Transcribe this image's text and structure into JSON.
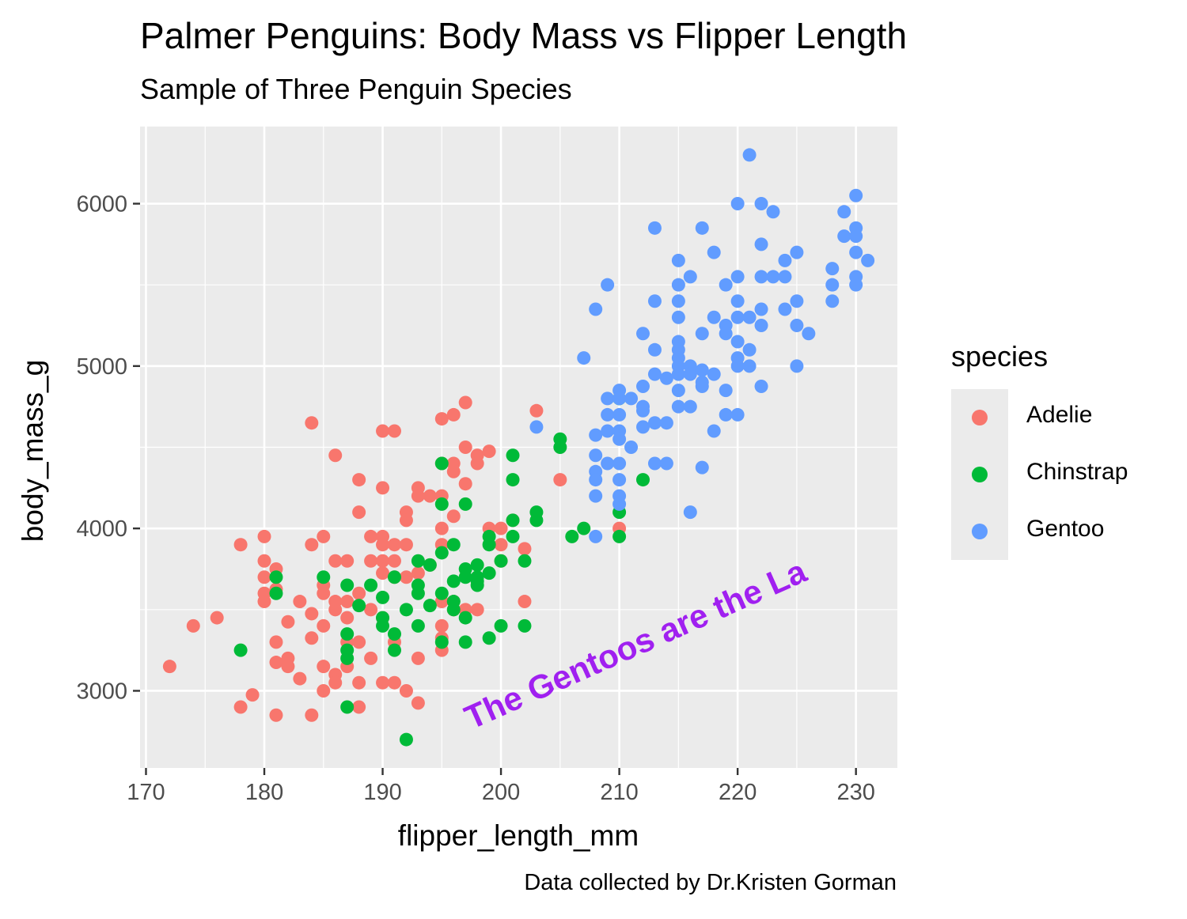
{
  "title": "Palmer Penguins: Body Mass vs Flipper Length",
  "subtitle": "Sample of Three Penguin Species",
  "caption": "Data collected by Dr.Kristen Gorman",
  "chart_data": {
    "type": "scatter",
    "title": "Palmer Penguins: Body Mass vs Flipper Length",
    "subtitle": "Sample of Three Penguin Species",
    "xlabel": "flipper_length_mm",
    "ylabel": "body_mass_g",
    "xlim": [
      169.5,
      233.5
    ],
    "ylim": [
      2525,
      6475
    ],
    "x_ticks": [
      "170",
      "180",
      "190",
      "200",
      "210",
      "220",
      "230"
    ],
    "y_ticks": [
      "3000",
      "4000",
      "5000",
      "6000"
    ],
    "x_tick_values": [
      170,
      180,
      190,
      200,
      210,
      220,
      230
    ],
    "y_tick_values": [
      3000,
      4000,
      5000,
      6000
    ],
    "grid": true,
    "legend_title": "species",
    "legend_position": "right",
    "annotation": {
      "text": "The Gentoos are the La",
      "color": "#a020f0",
      "anchor_data": [
        197.5,
        2760
      ],
      "angle": -24
    },
    "series": [
      {
        "name": "Adelie",
        "color": "#f8766d",
        "points": [
          [
            172,
            3150
          ],
          [
            174,
            3400
          ],
          [
            176,
            3450
          ],
          [
            178,
            3900
          ],
          [
            178,
            2900
          ],
          [
            179,
            2975
          ],
          [
            180,
            3950
          ],
          [
            180,
            3800
          ],
          [
            180,
            3700
          ],
          [
            180,
            3600
          ],
          [
            180,
            3550
          ],
          [
            181,
            3750
          ],
          [
            181,
            3625
          ],
          [
            181,
            3300
          ],
          [
            181,
            3175
          ],
          [
            181,
            2850
          ],
          [
            182,
            3425
          ],
          [
            182,
            3200
          ],
          [
            182,
            3150
          ],
          [
            183,
            3550
          ],
          [
            183,
            3075
          ],
          [
            184,
            4650
          ],
          [
            184,
            3900
          ],
          [
            184,
            3475
          ],
          [
            184,
            3325
          ],
          [
            184,
            2850
          ],
          [
            185,
            3950
          ],
          [
            185,
            3650
          ],
          [
            185,
            3600
          ],
          [
            185,
            3400
          ],
          [
            185,
            3150
          ],
          [
            185,
            3000
          ],
          [
            186,
            4450
          ],
          [
            186,
            3800
          ],
          [
            186,
            3550
          ],
          [
            186,
            3500
          ],
          [
            186,
            3100
          ],
          [
            186,
            3050
          ],
          [
            187,
            3800
          ],
          [
            187,
            3550
          ],
          [
            187,
            3450
          ],
          [
            187,
            3300
          ],
          [
            187,
            3150
          ],
          [
            188,
            4300
          ],
          [
            188,
            4100
          ],
          [
            188,
            3600
          ],
          [
            188,
            3300
          ],
          [
            188,
            3050
          ],
          [
            188,
            2900
          ],
          [
            189,
            3950
          ],
          [
            189,
            3800
          ],
          [
            189,
            3500
          ],
          [
            189,
            3200
          ],
          [
            190,
            4600
          ],
          [
            190,
            4250
          ],
          [
            190,
            3950
          ],
          [
            190,
            3900
          ],
          [
            190,
            3800
          ],
          [
            190,
            3725
          ],
          [
            190,
            3450
          ],
          [
            190,
            3050
          ],
          [
            191,
            4600
          ],
          [
            191,
            3900
          ],
          [
            191,
            3800
          ],
          [
            191,
            3700
          ],
          [
            191,
            3300
          ],
          [
            191,
            3050
          ],
          [
            192,
            4100
          ],
          [
            192,
            4050
          ],
          [
            192,
            3900
          ],
          [
            192,
            3700
          ],
          [
            192,
            3000
          ],
          [
            193,
            4250
          ],
          [
            193,
            4200
          ],
          [
            193,
            3725
          ],
          [
            193,
            3200
          ],
          [
            193,
            2925
          ],
          [
            194,
            4200
          ],
          [
            194,
            3775
          ],
          [
            195,
            4675
          ],
          [
            195,
            4400
          ],
          [
            195,
            4200
          ],
          [
            195,
            4000
          ],
          [
            195,
            3900
          ],
          [
            195,
            3550
          ],
          [
            195,
            3400
          ],
          [
            195,
            3325
          ],
          [
            195,
            3250
          ],
          [
            196,
            4700
          ],
          [
            196,
            4400
          ],
          [
            196,
            4350
          ],
          [
            196,
            4075
          ],
          [
            196,
            3550
          ],
          [
            196,
            3500
          ],
          [
            197,
            4775
          ],
          [
            197,
            4500
          ],
          [
            197,
            4275
          ],
          [
            197,
            3500
          ],
          [
            198,
            4450
          ],
          [
            198,
            4400
          ],
          [
            198,
            3500
          ],
          [
            199,
            4475
          ],
          [
            199,
            4000
          ],
          [
            200,
            4000
          ],
          [
            200,
            3900
          ],
          [
            200,
            3800
          ],
          [
            201,
            4050
          ],
          [
            202,
            3875
          ],
          [
            202,
            3550
          ],
          [
            203,
            4725
          ],
          [
            205,
            4300
          ],
          [
            210,
            4000
          ]
        ]
      },
      {
        "name": "Chinstrap",
        "color": "#00ba38",
        "points": [
          [
            178,
            3250
          ],
          [
            181,
            3700
          ],
          [
            181,
            3600
          ],
          [
            185,
            3700
          ],
          [
            187,
            3650
          ],
          [
            187,
            3350
          ],
          [
            187,
            3250
          ],
          [
            187,
            3200
          ],
          [
            187,
            2900
          ],
          [
            188,
            3525
          ],
          [
            189,
            3650
          ],
          [
            190,
            3575
          ],
          [
            190,
            3450
          ],
          [
            190,
            3400
          ],
          [
            191,
            3700
          ],
          [
            191,
            3350
          ],
          [
            191,
            3250
          ],
          [
            192,
            3500
          ],
          [
            192,
            2700
          ],
          [
            193,
            3800
          ],
          [
            193,
            3650
          ],
          [
            193,
            3600
          ],
          [
            193,
            3400
          ],
          [
            194,
            3775
          ],
          [
            194,
            3525
          ],
          [
            195,
            4400
          ],
          [
            195,
            4150
          ],
          [
            195,
            3850
          ],
          [
            195,
            3600
          ],
          [
            195,
            3300
          ],
          [
            196,
            3900
          ],
          [
            196,
            3675
          ],
          [
            196,
            3550
          ],
          [
            196,
            3500
          ],
          [
            197,
            4150
          ],
          [
            197,
            3750
          ],
          [
            197,
            3700
          ],
          [
            197,
            3450
          ],
          [
            197,
            3300
          ],
          [
            198,
            3775
          ],
          [
            198,
            3700
          ],
          [
            198,
            3675
          ],
          [
            198,
            3650
          ],
          [
            199,
            3950
          ],
          [
            199,
            3900
          ],
          [
            199,
            3725
          ],
          [
            199,
            3325
          ],
          [
            200,
            3800
          ],
          [
            200,
            3400
          ],
          [
            201,
            4450
          ],
          [
            201,
            4300
          ],
          [
            201,
            4050
          ],
          [
            201,
            3950
          ],
          [
            202,
            3800
          ],
          [
            202,
            3400
          ],
          [
            203,
            4100
          ],
          [
            203,
            4050
          ],
          [
            205,
            4550
          ],
          [
            205,
            4500
          ],
          [
            206,
            3950
          ],
          [
            207,
            4000
          ],
          [
            210,
            4800
          ],
          [
            210,
            4100
          ],
          [
            210,
            3950
          ],
          [
            212,
            4300
          ]
        ]
      },
      {
        "name": "Gentoo",
        "color": "#619cff",
        "points": [
          [
            203,
            4625
          ],
          [
            207,
            5050
          ],
          [
            208,
            5350
          ],
          [
            208,
            4575
          ],
          [
            208,
            4450
          ],
          [
            208,
            4350
          ],
          [
            208,
            4300
          ],
          [
            208,
            4200
          ],
          [
            208,
            3950
          ],
          [
            209,
            5500
          ],
          [
            209,
            4800
          ],
          [
            209,
            4700
          ],
          [
            209,
            4600
          ],
          [
            209,
            4400
          ],
          [
            210,
            4850
          ],
          [
            210,
            4800
          ],
          [
            210,
            4700
          ],
          [
            210,
            4600
          ],
          [
            210,
            4550
          ],
          [
            210,
            4400
          ],
          [
            210,
            4300
          ],
          [
            210,
            4200
          ],
          [
            210,
            4150
          ],
          [
            211,
            4800
          ],
          [
            211,
            4500
          ],
          [
            212,
            5200
          ],
          [
            212,
            4875
          ],
          [
            212,
            4750
          ],
          [
            212,
            4725
          ],
          [
            212,
            4625
          ],
          [
            213,
            5850
          ],
          [
            213,
            5400
          ],
          [
            213,
            5100
          ],
          [
            213,
            4950
          ],
          [
            213,
            4650
          ],
          [
            213,
            4400
          ],
          [
            214,
            4925
          ],
          [
            214,
            4650
          ],
          [
            214,
            4400
          ],
          [
            215,
            5650
          ],
          [
            215,
            5500
          ],
          [
            215,
            5400
          ],
          [
            215,
            5300
          ],
          [
            215,
            5150
          ],
          [
            215,
            5100
          ],
          [
            215,
            5050
          ],
          [
            215,
            5000
          ],
          [
            215,
            4950
          ],
          [
            215,
            4850
          ],
          [
            215,
            4750
          ],
          [
            216,
            5550
          ],
          [
            216,
            5000
          ],
          [
            216,
            4950
          ],
          [
            216,
            4750
          ],
          [
            216,
            4100
          ],
          [
            217,
            5850
          ],
          [
            217,
            5200
          ],
          [
            217,
            4975
          ],
          [
            217,
            4900
          ],
          [
            217,
            4875
          ],
          [
            217,
            4375
          ],
          [
            218,
            5700
          ],
          [
            218,
            5300
          ],
          [
            218,
            4950
          ],
          [
            218,
            4600
          ],
          [
            219,
            5500
          ],
          [
            219,
            5250
          ],
          [
            219,
            5200
          ],
          [
            219,
            4850
          ],
          [
            219,
            4700
          ],
          [
            220,
            6000
          ],
          [
            220,
            5550
          ],
          [
            220,
            5400
          ],
          [
            220,
            5300
          ],
          [
            220,
            5150
          ],
          [
            220,
            5050
          ],
          [
            220,
            5000
          ],
          [
            220,
            4700
          ],
          [
            221,
            6300
          ],
          [
            221,
            5300
          ],
          [
            221,
            5100
          ],
          [
            221,
            5000
          ],
          [
            222,
            6000
          ],
          [
            222,
            5750
          ],
          [
            222,
            5550
          ],
          [
            222,
            5350
          ],
          [
            222,
            5250
          ],
          [
            222,
            4875
          ],
          [
            223,
            5950
          ],
          [
            223,
            5550
          ],
          [
            224,
            5650
          ],
          [
            224,
            5550
          ],
          [
            224,
            5350
          ],
          [
            225,
            5700
          ],
          [
            225,
            5400
          ],
          [
            225,
            5250
          ],
          [
            225,
            5000
          ],
          [
            226,
            5200
          ],
          [
            228,
            5600
          ],
          [
            228,
            5500
          ],
          [
            228,
            5400
          ],
          [
            229,
            5950
          ],
          [
            229,
            5800
          ],
          [
            230,
            6050
          ],
          [
            230,
            5850
          ],
          [
            230,
            5800
          ],
          [
            230,
            5700
          ],
          [
            230,
            5550
          ],
          [
            230,
            5500
          ],
          [
            231,
            5650
          ]
        ]
      }
    ]
  }
}
